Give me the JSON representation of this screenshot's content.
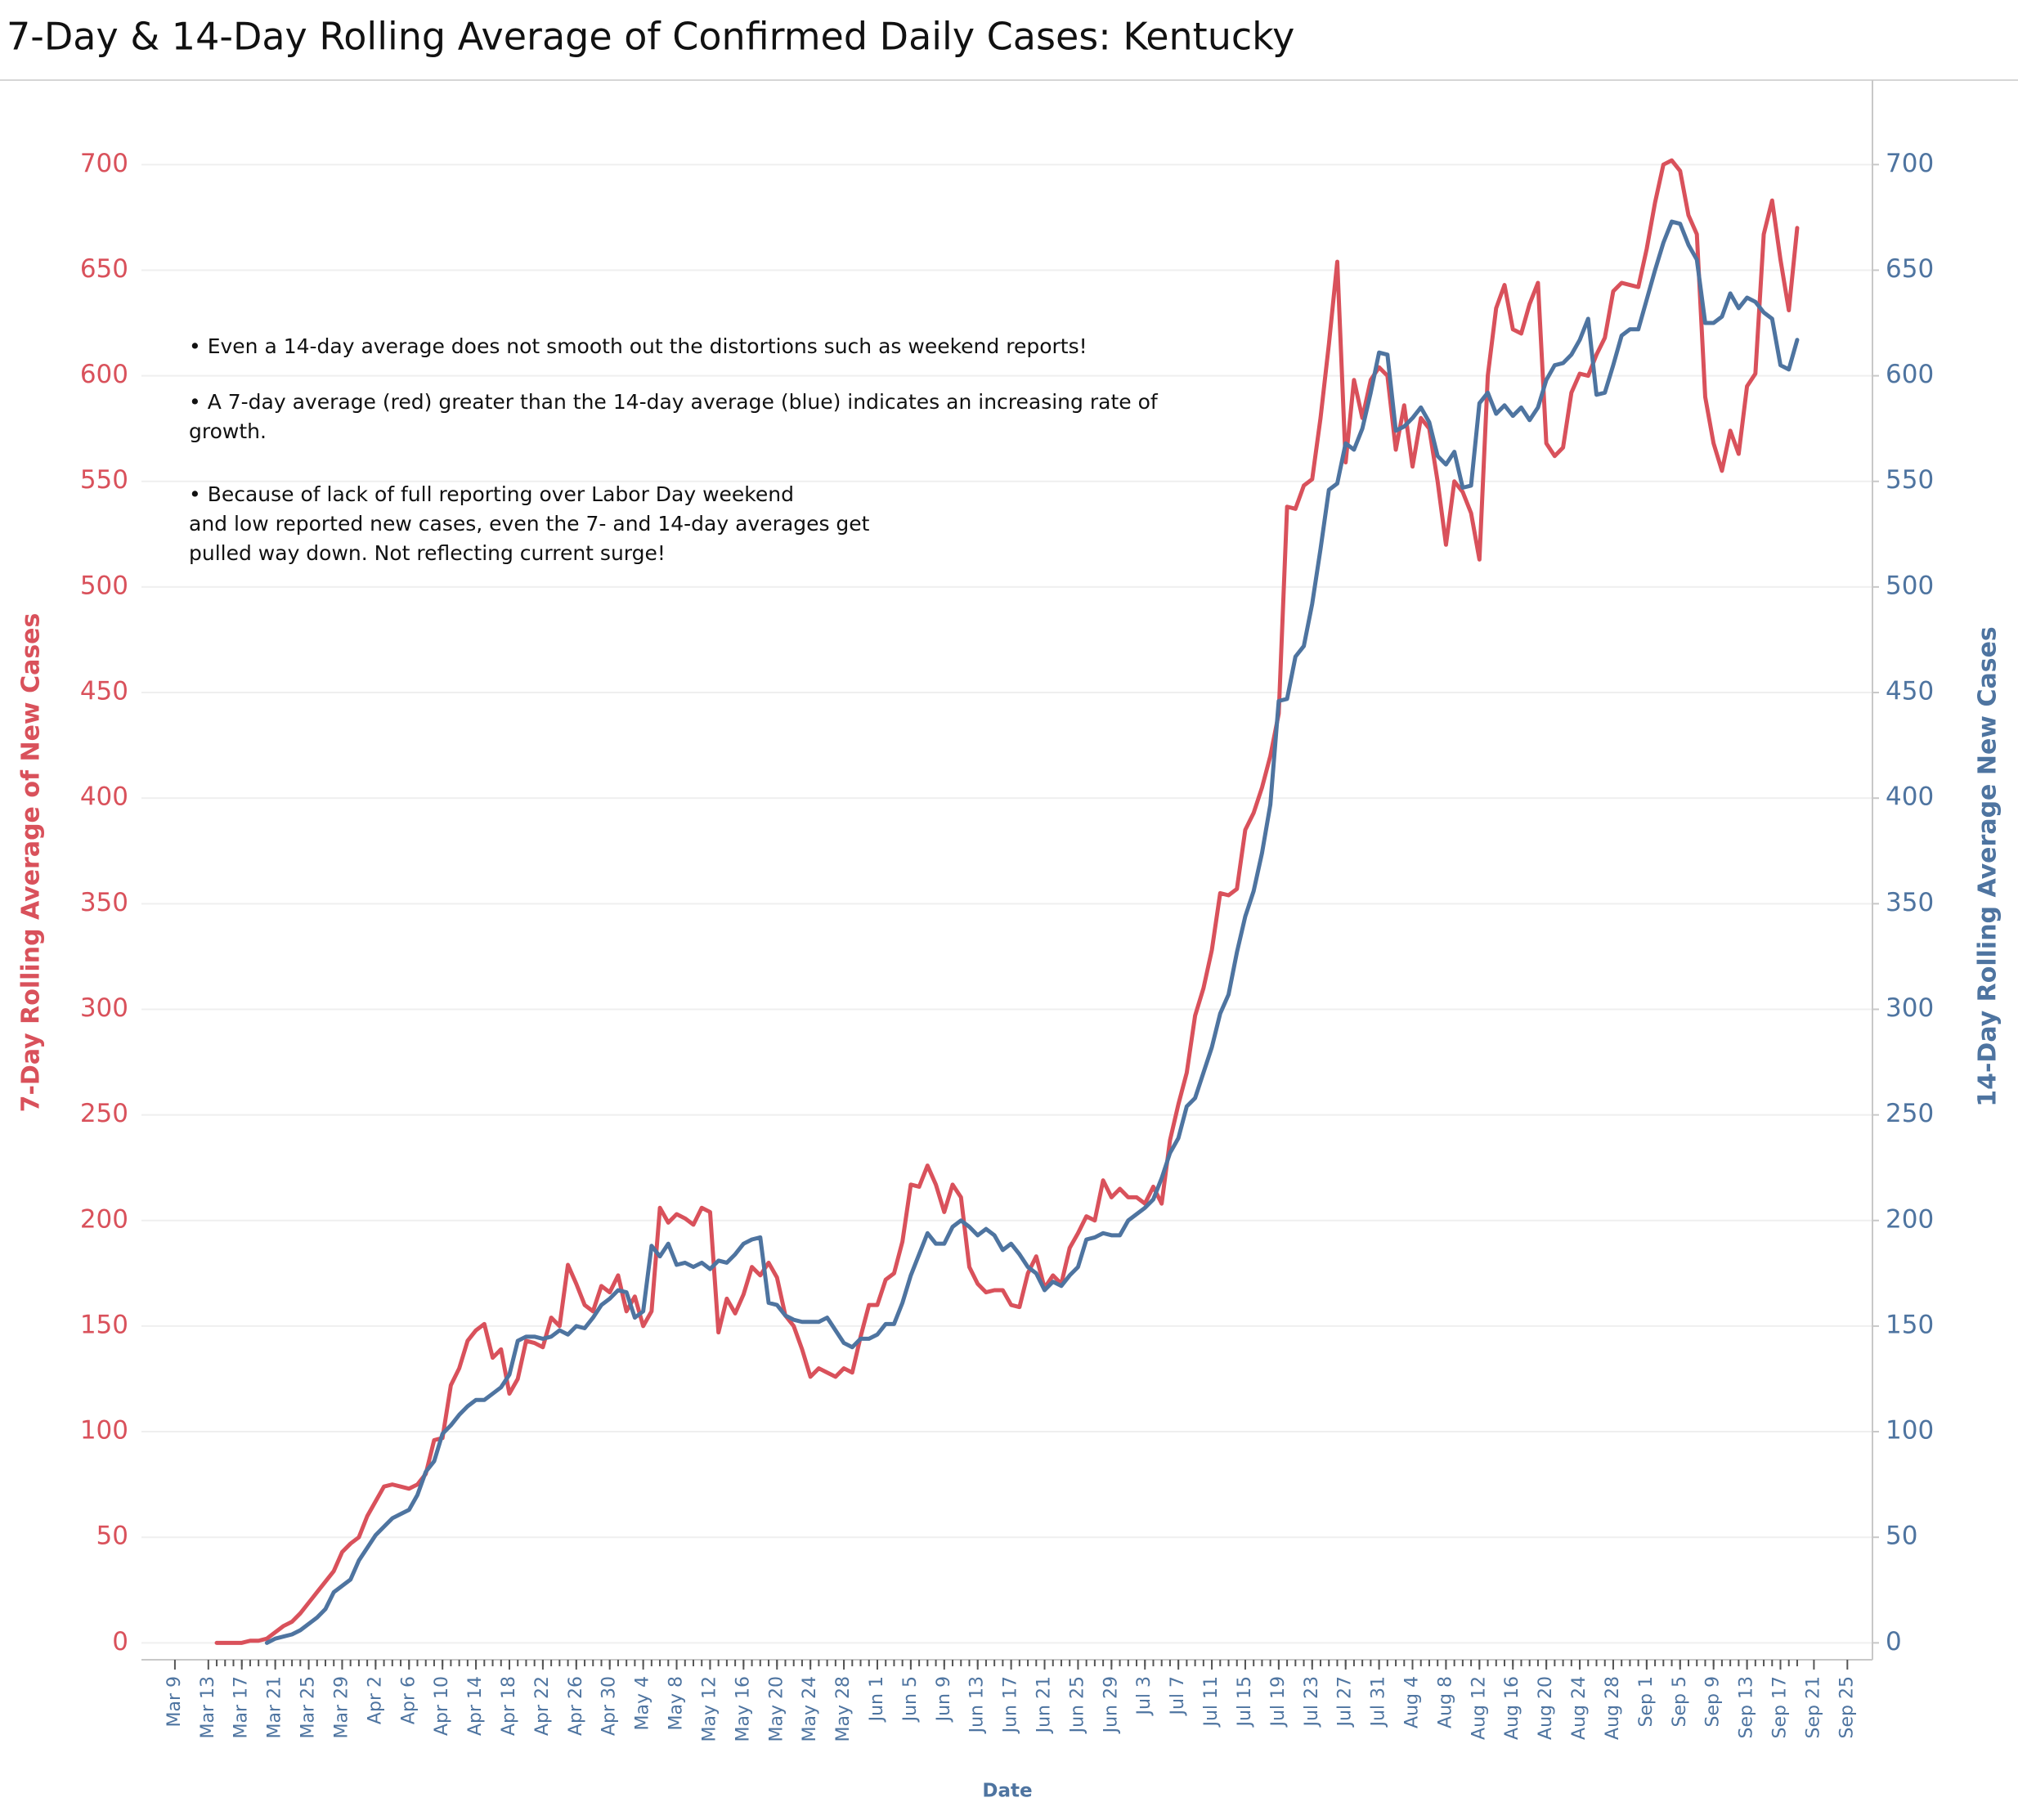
{
  "chart_data": {
    "type": "line",
    "title": "7-Day & 14-Day Rolling Average of Confirmed Daily  Cases:  Kentucky",
    "annotations": [
      "• Even a 14-day average does not smooth out the distortions such as weekend reports!",
      "• A 7-day average (red) greater than the 14-day average (blue) indicates an increasing rate of",
      "growth.",
      "• Because of lack of full reporting over Labor Day weekend",
      "and low reported new cases, even the 7- and 14-day averages get",
      "pulled way down.  Not reflecting current surge!"
    ],
    "xlabel": "Date",
    "ylabel": "7-Day Rolling  Average of New Cases",
    "y2label": "14-Day Rolling Average New Cases",
    "x": [
      "Mar 14",
      "Mar 15",
      "Mar 16",
      "Mar 17",
      "Mar 18",
      "Mar 19",
      "Mar 20",
      "Mar 21",
      "Mar 22",
      "Mar 23",
      "Mar 24",
      "Mar 25",
      "Mar 26",
      "Mar 27",
      "Mar 28",
      "Mar 29",
      "Mar 30",
      "Mar 31",
      "Apr 1",
      "Apr 2",
      "Apr 3",
      "Apr 4",
      "Apr 5",
      "Apr 6",
      "Apr 7",
      "Apr 8",
      "Apr 9",
      "Apr 10",
      "Apr 11",
      "Apr 12",
      "Apr 13",
      "Apr 14",
      "Apr 15",
      "Apr 16",
      "Apr 17",
      "Apr 18",
      "Apr 19",
      "Apr 20",
      "Apr 21",
      "Apr 22",
      "Apr 23",
      "Apr 24",
      "Apr 25",
      "Apr 26",
      "Apr 27",
      "Apr 28",
      "Apr 29",
      "Apr 30",
      "May 1",
      "May 2",
      "May 3",
      "May 4",
      "May 5",
      "May 6",
      "May 7",
      "May 8",
      "May 9",
      "May 10",
      "May 11",
      "May 12",
      "May 13",
      "May 14",
      "May 15",
      "May 16",
      "May 17",
      "May 18",
      "May 19",
      "May 20",
      "May 21",
      "May 22",
      "May 23",
      "May 24",
      "May 25",
      "May 26",
      "May 27",
      "May 28",
      "May 29",
      "May 30",
      "May 31",
      "Jun 1",
      "Jun 2",
      "Jun 3",
      "Jun 4",
      "Jun 5",
      "Jun 6",
      "Jun 7",
      "Jun 8",
      "Jun 9",
      "Jun 10",
      "Jun 11",
      "Jun 12",
      "Jun 13",
      "Jun 14",
      "Jun 15",
      "Jun 16",
      "Jun 17",
      "Jun 18",
      "Jun 19",
      "Jun 20",
      "Jun 21",
      "Jun 22",
      "Jun 23",
      "Jun 24",
      "Jun 25",
      "Jun 26",
      "Jun 27",
      "Jun 28",
      "Jun 29",
      "Jun 30",
      "Jul 1",
      "Jul 2",
      "Jul 3",
      "Jul 4",
      "Jul 5",
      "Jul 6",
      "Jul 7",
      "Jul 8",
      "Jul 9",
      "Jul 10",
      "Jul 11",
      "Jul 12",
      "Jul 13",
      "Jul 14",
      "Jul 15",
      "Jul 16",
      "Jul 17",
      "Jul 18",
      "Jul 19",
      "Jul 20",
      "Jul 21",
      "Jul 22",
      "Jul 23",
      "Jul 24",
      "Jul 25",
      "Jul 26",
      "Jul 27",
      "Jul 28",
      "Jul 29",
      "Jul 30",
      "Jul 31",
      "Aug 1",
      "Aug 2",
      "Aug 3",
      "Aug 4",
      "Aug 5",
      "Aug 6",
      "Aug 7",
      "Aug 8",
      "Aug 9",
      "Aug 10",
      "Aug 11",
      "Aug 12",
      "Aug 13",
      "Aug 14",
      "Aug 15",
      "Aug 16",
      "Aug 17",
      "Aug 18",
      "Aug 19",
      "Aug 20",
      "Aug 21",
      "Aug 22",
      "Aug 23",
      "Aug 24",
      "Aug 25",
      "Aug 26",
      "Aug 27",
      "Aug 28",
      "Aug 29",
      "Aug 30",
      "Aug 31",
      "Sep 1",
      "Sep 2",
      "Sep 3",
      "Sep 4",
      "Sep 5",
      "Sep 6",
      "Sep 7",
      "Sep 8",
      "Sep 9",
      "Sep 10",
      "Sep 11",
      "Sep 12",
      "Sep 13",
      "Sep 14",
      "Sep 15",
      "Sep 16",
      "Sep 17",
      "Sep 18",
      "Sep 19"
    ],
    "series": [
      {
        "name": "7-Day Rolling  Average of New Cases",
        "color": "#d9515b",
        "values": [
          0,
          0,
          0,
          0,
          1,
          1,
          2,
          5,
          8,
          10,
          14,
          19,
          24,
          29,
          34,
          43,
          47,
          50,
          60,
          67,
          74,
          75,
          74,
          73,
          75,
          80,
          96,
          97,
          122,
          130,
          143,
          148,
          151,
          135,
          139,
          118,
          125,
          143,
          142,
          140,
          154,
          150,
          179,
          170,
          160,
          157,
          169,
          166,
          174,
          157,
          164,
          150,
          157,
          206,
          199,
          203,
          201,
          198,
          206,
          204,
          147,
          163,
          156,
          165,
          178,
          174,
          180,
          173,
          155,
          150,
          139,
          126,
          130,
          128,
          126,
          130,
          128,
          145,
          160,
          160,
          172,
          175,
          190,
          217,
          216,
          226,
          217,
          204,
          217,
          211,
          178,
          170,
          166,
          167,
          167,
          160,
          159,
          175,
          183,
          168,
          174,
          170,
          187,
          194,
          202,
          200,
          219,
          211,
          215,
          211,
          211,
          208,
          216,
          208,
          238,
          255,
          270,
          297,
          310,
          328,
          355,
          354,
          357,
          385,
          393,
          405,
          420,
          440,
          538,
          537,
          548,
          551,
          580,
          615,
          654,
          559,
          598,
          580,
          598,
          604,
          600,
          565,
          586,
          557,
          580,
          575,
          550,
          520,
          550,
          545,
          535,
          513,
          600,
          632,
          643,
          622,
          620,
          634,
          644,
          568,
          562,
          566,
          592,
          601,
          600,
          610,
          618,
          640,
          644,
          643,
          642,
          660,
          682,
          700,
          702,
          697,
          676,
          667,
          590,
          568,
          555,
          574,
          563,
          595,
          601,
          667,
          683,
          655,
          631,
          670
        ]
      },
      {
        "name": "14-Day Rolling Average New Cases",
        "color": "#4e74a0",
        "axis": "y2",
        "values": [
          null,
          null,
          null,
          null,
          null,
          null,
          0,
          2,
          3,
          4,
          6,
          9,
          12,
          16,
          24,
          27,
          30,
          39,
          45,
          51,
          55,
          59,
          61,
          63,
          70,
          81,
          86,
          99,
          103,
          108,
          112,
          115,
          115,
          118,
          121,
          127,
          143,
          145,
          145,
          144,
          145,
          148,
          146,
          150,
          149,
          154,
          160,
          163,
          167,
          166,
          154,
          157,
          188,
          183,
          189,
          179,
          180,
          178,
          180,
          177,
          181,
          180,
          184,
          189,
          191,
          192,
          161,
          160,
          155,
          153,
          152,
          152,
          152,
          154,
          148,
          142,
          140,
          144,
          144,
          146,
          151,
          151,
          161,
          174,
          184,
          194,
          189,
          189,
          197,
          200,
          197,
          193,
          196,
          193,
          186,
          189,
          184,
          178,
          175,
          167,
          171,
          169,
          174,
          178,
          191,
          192,
          194,
          193,
          193,
          200,
          203,
          206,
          210,
          220,
          232,
          239,
          254,
          258,
          270,
          282,
          298,
          307,
          327,
          344,
          356,
          374,
          397,
          446,
          447,
          467,
          472,
          492,
          518,
          546,
          549,
          568,
          565,
          575,
          592,
          611,
          610,
          574,
          576,
          580,
          585,
          578,
          562,
          558,
          564,
          547,
          548,
          587,
          592,
          582,
          586,
          581,
          585,
          579,
          585,
          598,
          605,
          606,
          610,
          617,
          627,
          591,
          592,
          605,
          619,
          622,
          622,
          636,
          650,
          663,
          673,
          672,
          662,
          655,
          625,
          625,
          628,
          639,
          632,
          637,
          635,
          630,
          627,
          605,
          603,
          617
        ]
      }
    ],
    "xlim": [
      "Mar 5",
      "Sep 28"
    ],
    "xticks": [
      "Mar 9",
      "Mar 13",
      "Mar 17",
      "Mar 21",
      "Mar 25",
      "Mar 29",
      "Apr 2",
      "Apr 6",
      "Apr 10",
      "Apr 14",
      "Apr 18",
      "Apr 22",
      "Apr 26",
      "Apr 30",
      "May 4",
      "May 8",
      "May 12",
      "May 16",
      "May 20",
      "May 24",
      "May 28",
      "Jun 1",
      "Jun 5",
      "Jun 9",
      "Jun 13",
      "Jun 17",
      "Jun 21",
      "Jun 25",
      "Jun 29",
      "Jul 3",
      "Jul 7",
      "Jul 11",
      "Jul 15",
      "Jul 19",
      "Jul 23",
      "Jul 27",
      "Jul 31",
      "Aug 4",
      "Aug 8",
      "Aug 12",
      "Aug 16",
      "Aug 20",
      "Aug 24",
      "Aug 28",
      "Sep 1",
      "Sep 5",
      "Sep 9",
      "Sep 13",
      "Sep 17",
      "Sep 21",
      "Sep 25"
    ],
    "ylim": [
      -8,
      740
    ],
    "yticks": [
      0,
      50,
      100,
      150,
      200,
      250,
      300,
      350,
      400,
      450,
      500,
      550,
      600,
      650,
      700
    ],
    "y2lim": [
      -8,
      740
    ],
    "y2ticks": [
      0,
      50,
      100,
      150,
      200,
      250,
      300,
      350,
      400,
      450,
      500,
      550,
      600,
      650,
      700
    ],
    "grid": true
  }
}
